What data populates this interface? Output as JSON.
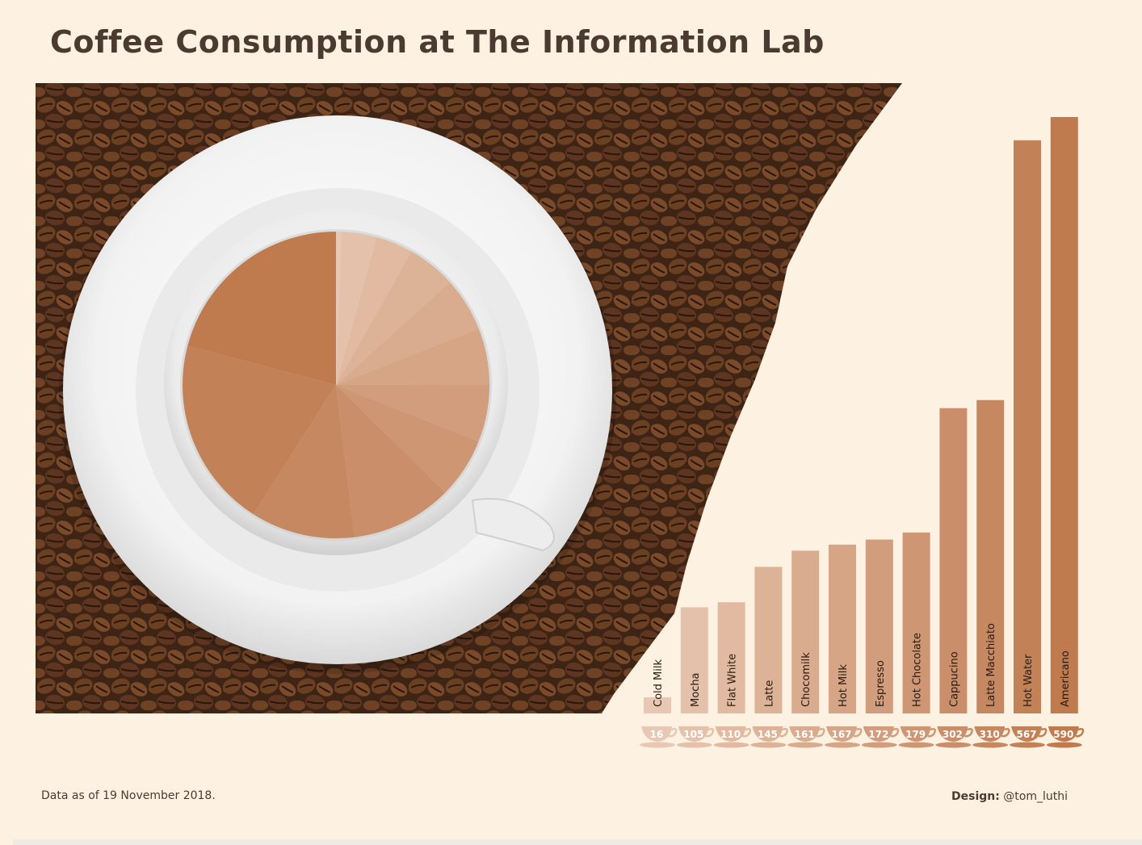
{
  "page": {
    "title": "Coffee Consumption at The Information Lab",
    "footnote": "Data as of 19 November 2018.",
    "credit_label": "Design:",
    "credit_handle": "@tom_luthi"
  },
  "colors": {
    "background": "#fdf2e2",
    "beans": "#4a2c1a",
    "saucer": "#f4f4f4",
    "bar_light": "#e8c8b4",
    "bar_dark": "#bf7a4e"
  },
  "chart_data": [
    {
      "type": "bar",
      "categories": [
        "Cold Milk",
        "Mocha",
        "Flat White",
        "Latte",
        "Chocomilk",
        "Hot Milk",
        "Espresso",
        "Hot Chocolate",
        "Cappucino",
        "Latte Macchiato",
        "Hot Water",
        "Americano"
      ],
      "values": [
        16,
        105,
        110,
        145,
        161,
        167,
        172,
        179,
        302,
        310,
        567,
        590
      ],
      "ylim": [
        0,
        590
      ]
    },
    {
      "type": "pie",
      "categories": [
        "Cold Milk",
        "Mocha",
        "Flat White",
        "Latte",
        "Chocomilk",
        "Hot Milk",
        "Espresso",
        "Hot Chocolate",
        "Cappucino",
        "Latte Macchiato",
        "Hot Water",
        "Americano"
      ],
      "values": [
        16,
        105,
        110,
        145,
        161,
        167,
        172,
        179,
        302,
        310,
        567,
        590
      ]
    }
  ]
}
